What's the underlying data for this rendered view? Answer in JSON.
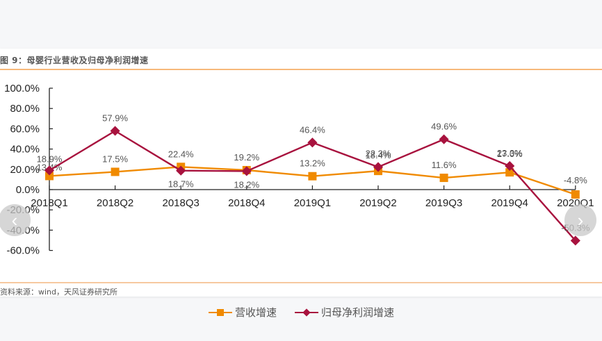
{
  "figure": {
    "title": "图 9：母婴行业营收及归母净利润增速",
    "source": "资料来源：wind，天风证券研究所"
  },
  "navigation": {
    "prev_icon": "chevron-left-icon",
    "prev_glyph": "‹",
    "next_icon": "chevron-right-icon",
    "next_glyph": "›"
  },
  "colors": {
    "revenue": "#f08a00",
    "profit": "#a8123e",
    "title_rule": "#f7b87a",
    "background": "#f6f7f9"
  },
  "legend": {
    "revenue": "营收增速",
    "profit": "归母净利润增速"
  },
  "chart_data": {
    "type": "line",
    "title": "图 9：母婴行业营收及归母净利润增速",
    "xlabel": "",
    "ylabel": "",
    "categories": [
      "2018Q1",
      "2018Q2",
      "2018Q3",
      "2018Q4",
      "2019Q1",
      "2019Q2",
      "2019Q3",
      "2019Q4",
      "2020Q1"
    ],
    "yticks": [
      "100.0%",
      "80.0%",
      "60.0%",
      "40.0%",
      "20.0%",
      "0.0%",
      "-20.0%",
      "-40.0%",
      "-60.0%"
    ],
    "ylim": [
      -60,
      100
    ],
    "grid": false,
    "legend_position": "bottom",
    "series": [
      {
        "name": "营收增速",
        "marker": "square",
        "color": "#f08a00",
        "values": [
          13.4,
          17.5,
          22.4,
          19.2,
          13.2,
          18.4,
          11.6,
          17.0,
          -4.8
        ],
        "labels": [
          "13.4%",
          "17.5%",
          "22.4%",
          "19.2%",
          "13.2%",
          "18.4%",
          "11.6%",
          "17.0%",
          "-4.8%"
        ]
      },
      {
        "name": "归母净利润增速",
        "marker": "diamond",
        "color": "#a8123e",
        "values": [
          18.9,
          57.9,
          18.7,
          18.2,
          46.4,
          22.3,
          49.6,
          23.3,
          -50.3
        ],
        "labels": [
          "18.9%",
          "57.9%",
          "18.7%",
          "18.2%",
          "46.4%",
          "22.3%",
          "49.6%",
          "23.3%",
          "-50.3%"
        ]
      }
    ],
    "source": "资料来源：wind，天风证券研究所"
  }
}
